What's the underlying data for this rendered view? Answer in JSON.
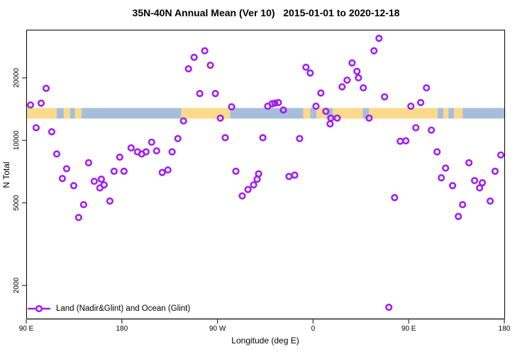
{
  "title": "35N-40N Annual Mean (Ver 10)   2015-01-01 to 2020-12-18",
  "chart_data": {
    "type": "scatter",
    "title": "35N-40N Annual Mean (Ver 10)   2015-01-01 to 2020-12-18",
    "xlabel": "Longitude (deg E)",
    "ylabel": "N Total",
    "x_axis": {
      "tick_labels": [
        "90 E",
        "180",
        "90 W",
        "0",
        "90 E",
        "180"
      ],
      "tick_offsets_deg": [
        0,
        90,
        180,
        270,
        360,
        450
      ],
      "span_deg": 450,
      "note": "longitude axis runs eastward from 90E, wrapping past 180 and 0 back to 180"
    },
    "y_axis": {
      "scale": "log",
      "tick_values": [
        2000,
        5000,
        10000,
        20000
      ],
      "tick_labels": [
        "2000",
        "5000",
        "10000",
        "20000"
      ],
      "range": [
        1385,
        34100
      ]
    },
    "legend": {
      "label": "Land (Nadir&Glint) and Ocean (Glint)",
      "marker": "open-circle-on-line",
      "position": "bottom-left-inside"
    },
    "marker_color": "#A020F0",
    "grid": false,
    "map_band": {
      "description": "35N-40N world-map strip drawn across plot, land vs ocean",
      "land_color": "#FBDA8C",
      "ocean_color": "#A7BEDB",
      "y_center_value": 13500,
      "segments": [
        {
          "from": 0,
          "to": 28.7,
          "type": "land"
        },
        {
          "from": 28.7,
          "to": 35.3,
          "type": "ocean"
        },
        {
          "from": 35.3,
          "to": 41.3,
          "type": "land"
        },
        {
          "from": 41.3,
          "to": 46.0,
          "type": "ocean"
        },
        {
          "from": 46.0,
          "to": 52.0,
          "type": "land"
        },
        {
          "from": 52.0,
          "to": 146.0,
          "type": "ocean"
        },
        {
          "from": 146.0,
          "to": 192.0,
          "type": "land"
        },
        {
          "from": 192.0,
          "to": 260.7,
          "type": "ocean"
        },
        {
          "from": 260.7,
          "to": 267.3,
          "type": "land"
        },
        {
          "from": 267.3,
          "to": 273.3,
          "type": "ocean"
        },
        {
          "from": 273.3,
          "to": 282.7,
          "type": "land"
        },
        {
          "from": 282.7,
          "to": 288.7,
          "type": "ocean"
        },
        {
          "from": 288.7,
          "to": 316.7,
          "type": "land"
        },
        {
          "from": 316.7,
          "to": 322.7,
          "type": "ocean"
        },
        {
          "from": 322.7,
          "to": 387.3,
          "type": "land"
        },
        {
          "from": 387.3,
          "to": 392.7,
          "type": "ocean"
        },
        {
          "from": 392.7,
          "to": 397.3,
          "type": "land"
        },
        {
          "from": 397.3,
          "to": 402.7,
          "type": "ocean"
        },
        {
          "from": 402.7,
          "to": 410.7,
          "type": "land"
        },
        {
          "from": 410.7,
          "to": 450.0,
          "type": "ocean"
        }
      ]
    },
    "points": [
      [
        18.7,
        17800
      ],
      [
        4,
        14800
      ],
      [
        14,
        15100
      ],
      [
        9.3,
        11500
      ],
      [
        24,
        11000
      ],
      [
        28.7,
        8600
      ],
      [
        58.7,
        7800
      ],
      [
        38,
        7300
      ],
      [
        34,
        6550
      ],
      [
        64,
        6350
      ],
      [
        44.7,
        6050
      ],
      [
        69.3,
        5900
      ],
      [
        73.3,
        6100
      ],
      [
        54,
        4900
      ],
      [
        78.7,
        5100
      ],
      [
        49.3,
        4250
      ],
      [
        152.7,
        22100
      ],
      [
        148,
        12400
      ],
      [
        142.7,
        10200
      ],
      [
        118,
        9800
      ],
      [
        98.7,
        9200
      ],
      [
        104.7,
        8800
      ],
      [
        108.7,
        8600
      ],
      [
        112.7,
        8800
      ],
      [
        122.7,
        8900
      ],
      [
        137.3,
        8800
      ],
      [
        88,
        8300
      ],
      [
        133.3,
        7200
      ],
      [
        128,
        7000
      ],
      [
        82.7,
        7100
      ],
      [
        92,
        7100
      ],
      [
        70.7,
        6500
      ],
      [
        158,
        25100
      ],
      [
        168,
        27000
      ],
      [
        173.3,
        23000
      ],
      [
        163.3,
        16800
      ],
      [
        178,
        16800
      ],
      [
        193.3,
        14500
      ],
      [
        227.3,
        14600
      ],
      [
        234,
        15100
      ],
      [
        182.7,
        12800
      ],
      [
        187.3,
        10300
      ],
      [
        222.7,
        10300
      ],
      [
        197.3,
        7100
      ],
      [
        218.7,
        6900
      ],
      [
        214,
        6100
      ],
      [
        203.3,
        5400
      ],
      [
        208.7,
        5800
      ],
      [
        217.3,
        6500
      ],
      [
        263.3,
        22500
      ],
      [
        267.3,
        21100
      ],
      [
        306.7,
        23600
      ],
      [
        311.3,
        21500
      ],
      [
        302,
        19500
      ],
      [
        297.3,
        18100
      ],
      [
        312.7,
        20000
      ],
      [
        317.3,
        17900
      ],
      [
        277.3,
        16900
      ],
      [
        231.3,
        15000
      ],
      [
        237.3,
        15200
      ],
      [
        242,
        14000
      ],
      [
        272.7,
        14600
      ],
      [
        282,
        13800
      ],
      [
        286.7,
        12800
      ],
      [
        292.7,
        12800
      ],
      [
        286,
        12000
      ],
      [
        257.3,
        10200
      ],
      [
        247.3,
        6700
      ],
      [
        252.7,
        6800
      ],
      [
        332,
        31000
      ],
      [
        327.3,
        27000
      ],
      [
        337.3,
        16200
      ],
      [
        376.7,
        17900
      ],
      [
        371.3,
        15200
      ],
      [
        362,
        14600
      ],
      [
        322.7,
        12800
      ],
      [
        366.7,
        11500
      ],
      [
        381.3,
        11200
      ],
      [
        352,
        9900
      ],
      [
        357.3,
        9950
      ],
      [
        386.7,
        8800
      ],
      [
        394.7,
        7350
      ],
      [
        390.7,
        6600
      ],
      [
        416.7,
        7800
      ],
      [
        446.7,
        8500
      ],
      [
        441.3,
        7100
      ],
      [
        401.3,
        6050
      ],
      [
        422,
        6400
      ],
      [
        429.3,
        6250
      ],
      [
        426.7,
        5900
      ],
      [
        346.7,
        5300
      ],
      [
        410.7,
        4900
      ],
      [
        406.7,
        4300
      ],
      [
        436.7,
        5100
      ],
      [
        341.3,
        1570
      ]
    ]
  }
}
